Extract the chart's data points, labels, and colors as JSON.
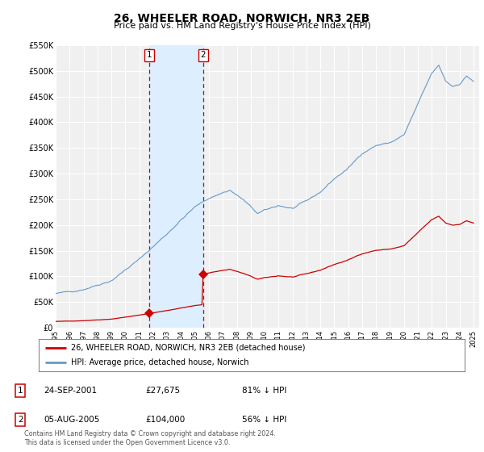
{
  "title": "26, WHEELER ROAD, NORWICH, NR3 2EB",
  "subtitle": "Price paid vs. HM Land Registry's House Price Index (HPI)",
  "ylim": [
    0,
    550000
  ],
  "yticks": [
    0,
    50000,
    100000,
    150000,
    200000,
    250000,
    300000,
    350000,
    400000,
    450000,
    500000,
    550000
  ],
  "bg_color": "#ffffff",
  "plot_bg_color": "#f0f0f0",
  "grid_color": "#ffffff",
  "hpi_color": "#6699cc",
  "price_color": "#cc0000",
  "sale1_year": 2001.73,
  "sale1_price": 27675,
  "sale2_year": 2005.58,
  "sale2_price": 104000,
  "sale1_label": "1",
  "sale2_label": "2",
  "legend_line1": "26, WHEELER ROAD, NORWICH, NR3 2EB (detached house)",
  "legend_line2": "HPI: Average price, detached house, Norwich",
  "table_row1": [
    "1",
    "24-SEP-2001",
    "£27,675",
    "81% ↓ HPI"
  ],
  "table_row2": [
    "2",
    "05-AUG-2005",
    "£104,000",
    "56% ↓ HPI"
  ],
  "footnote": "Contains HM Land Registry data © Crown copyright and database right 2024.\nThis data is licensed under the Open Government Licence v3.0.",
  "highlight_color": "#ddeeff",
  "dashed_color": "#cc0000"
}
